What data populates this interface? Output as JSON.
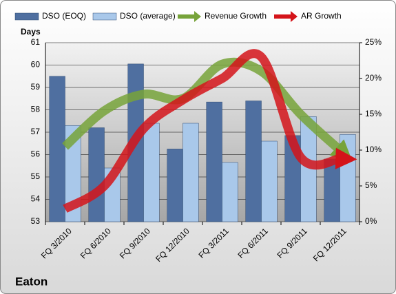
{
  "chart_data": {
    "type": "bar-line",
    "title": "Eaton",
    "y_label": "Days",
    "categories": [
      "FQ 3/2010",
      "FQ 6/2010",
      "FQ 9/2010",
      "FQ 12/2010",
      "FQ 3/2011",
      "FQ 6/2011",
      "FQ 9/2011",
      "FQ 12/2011"
    ],
    "series": [
      {
        "name": "DSO (EOQ)",
        "color": "#4f6fa0",
        "kind": "bar",
        "values": [
          59.5,
          57.2,
          60.05,
          56.25,
          58.35,
          58.4,
          56.85,
          55.8
        ]
      },
      {
        "name": "DSO (average)",
        "color": "#a9c8ea",
        "kind": "bar",
        "values": [
          57.3,
          55.4,
          57.4,
          57.4,
          55.65,
          56.6,
          57.7,
          56.9
        ]
      },
      {
        "name": "Revenue Growth",
        "color": "#77a33a",
        "kind": "arrow",
        "axis": "y2",
        "values": [
          10.5,
          15.5,
          17.8,
          17.2,
          22,
          21,
          15,
          10
        ]
      },
      {
        "name": "AR Growth",
        "color": "#d4141a",
        "kind": "arrow",
        "axis": "y2",
        "values": [
          1.8,
          5,
          13,
          17,
          20,
          23,
          9,
          8.8
        ]
      }
    ],
    "ylim": [
      53,
      61
    ],
    "yticks": [
      53,
      54,
      55,
      56,
      57,
      58,
      59,
      60,
      61
    ],
    "y2lim": [
      0,
      25
    ],
    "y2ticks": [
      {
        "value": 0,
        "label": "0%"
      },
      {
        "value": 5,
        "label": "5%"
      },
      {
        "value": 10,
        "label": "10%"
      },
      {
        "value": 15,
        "label": "15%"
      },
      {
        "value": 20,
        "label": "20%"
      },
      {
        "value": 25,
        "label": "25%"
      }
    ],
    "grid": true
  }
}
